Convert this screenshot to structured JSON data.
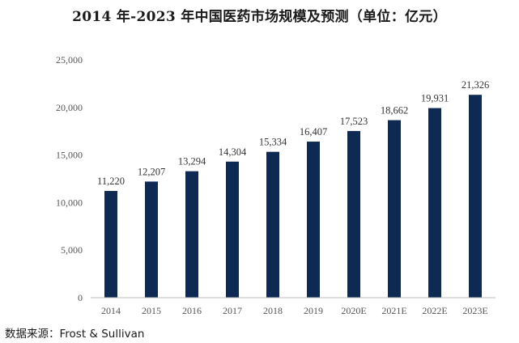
{
  "chart_data": {
    "type": "bar",
    "title": "2014 年-2023 年中国医药市场规模及预测（单位：亿元）",
    "categories": [
      "2014",
      "2015",
      "2016",
      "2017",
      "2018",
      "2019",
      "2020E",
      "2021E",
      "2022E",
      "2023E"
    ],
    "values": [
      11220,
      12207,
      13294,
      14304,
      15334,
      16407,
      17523,
      18662,
      19931,
      21326
    ],
    "data_labels": [
      "11,220",
      "12,207",
      "13,294",
      "14,304",
      "15,334",
      "16,407",
      "17,523",
      "18,662",
      "19,931",
      "21,326"
    ],
    "y_ticks": [
      0,
      5000,
      10000,
      15000,
      20000,
      25000
    ],
    "y_tick_labels": [
      "0",
      "5,000",
      "10,000",
      "15,000",
      "20,000",
      "25,000"
    ],
    "ylim": [
      0,
      25000
    ],
    "xlabel": "",
    "ylabel": "",
    "grid": false,
    "bar_color": "#0e2a52"
  },
  "source_text": "数据来源：Frost & Sullivan"
}
